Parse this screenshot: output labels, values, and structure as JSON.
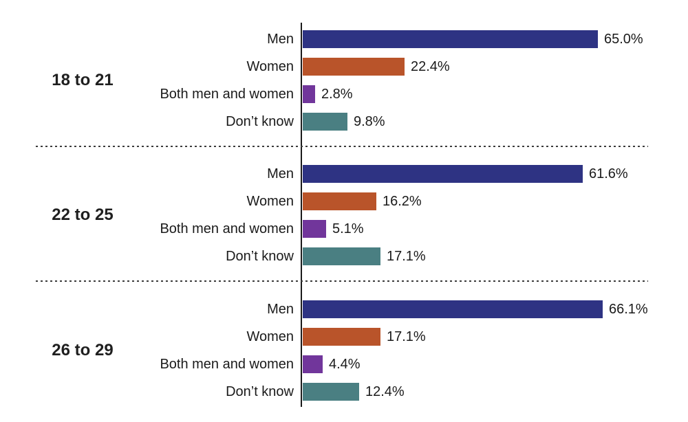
{
  "chart_data": {
    "type": "bar",
    "orientation": "horizontal",
    "title": "",
    "xlabel": "",
    "ylabel": "",
    "unit": "%",
    "xlim": [
      0,
      70
    ],
    "grid": false,
    "legend": false,
    "categories": [
      "Men",
      "Women",
      "Both men and women",
      "Don’t know"
    ],
    "category_colors": [
      "#2e3383",
      "#b9542a",
      "#71369b",
      "#4a7f82"
    ],
    "groups": [
      {
        "label": "18 to 21",
        "bars": [
          {
            "category": "Men",
            "value": 65.0,
            "display": "65.0%",
            "color": "#2e3383"
          },
          {
            "category": "Women",
            "value": 22.4,
            "display": "22.4%",
            "color": "#b9542a"
          },
          {
            "category": "Both men and women",
            "value": 2.8,
            "display": "2.8%",
            "color": "#71369b"
          },
          {
            "category": "Don’t know",
            "value": 9.8,
            "display": "9.8%",
            "color": "#4a7f82"
          }
        ]
      },
      {
        "label": "22 to 25",
        "bars": [
          {
            "category": "Men",
            "value": 61.6,
            "display": "61.6%",
            "color": "#2e3383"
          },
          {
            "category": "Women",
            "value": 16.2,
            "display": "16.2%",
            "color": "#b9542a"
          },
          {
            "category": "Both men and women",
            "value": 5.1,
            "display": "5.1%",
            "color": "#71369b"
          },
          {
            "category": "Don’t know",
            "value": 17.1,
            "display": "17.1%",
            "color": "#4a7f82"
          }
        ]
      },
      {
        "label": "26 to 29",
        "bars": [
          {
            "category": "Men",
            "value": 66.1,
            "display": "66.1%",
            "color": "#2e3383"
          },
          {
            "category": "Women",
            "value": 17.1,
            "display": "17.1%",
            "color": "#b9542a"
          },
          {
            "category": "Both men and women",
            "value": 4.4,
            "display": "4.4%",
            "color": "#71369b"
          },
          {
            "category": "Don’t know",
            "value": 12.4,
            "display": "12.4%",
            "color": "#4a7f82"
          }
        ]
      }
    ]
  }
}
